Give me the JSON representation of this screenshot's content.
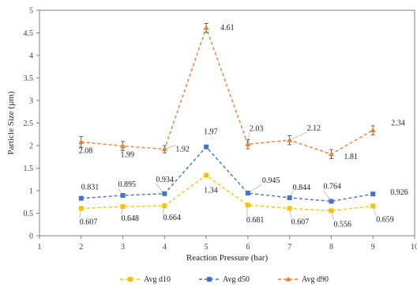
{
  "chart_data": {
    "type": "line",
    "xlabel": "Reaction Pressure (bar)",
    "ylabel": "Particle Size (µm)",
    "xlim": [
      1,
      10
    ],
    "ylim": [
      0,
      5
    ],
    "x_ticks": [
      "1",
      "2",
      "3",
      "4",
      "5",
      "6",
      "7",
      "8",
      "9",
      "10"
    ],
    "y_ticks": [
      "0",
      "0.5",
      "1",
      "1.5",
      "2",
      "2.5",
      "3",
      "3.5",
      "4",
      "4.5",
      "5"
    ],
    "x": [
      2,
      3,
      4,
      5,
      6,
      7,
      8,
      9
    ],
    "grid": false,
    "legend_position": "bottom",
    "series": [
      {
        "name": "Avg d10",
        "color": "#FFC000",
        "marker": "square",
        "values": [
          0.607,
          0.648,
          0.664,
          1.34,
          0.681,
          0.607,
          0.556,
          0.659
        ],
        "errors": [
          0.03,
          0.03,
          0.03,
          0.04,
          0.03,
          0.03,
          0.03,
          0.03
        ],
        "labels": [
          "0.607",
          "0.648",
          "0.664",
          "1.34",
          "0.681",
          "0.607",
          "0.556",
          "0.659"
        ]
      },
      {
        "name": "Avg d50",
        "color": "#4472C4",
        "marker": "square",
        "values": [
          0.831,
          0.895,
          0.934,
          1.97,
          0.945,
          0.844,
          0.764,
          0.926
        ],
        "errors": [
          0.03,
          0.03,
          0.03,
          0.04,
          0.03,
          0.03,
          0.03,
          0.03
        ],
        "labels": [
          "0.831",
          "0.895",
          "0.934",
          "1.97",
          "0.945",
          "0.844",
          "0.764",
          "0.926"
        ]
      },
      {
        "name": "Avg d90",
        "color": "#ED7D31",
        "marker": "triangle",
        "values": [
          2.08,
          1.99,
          1.92,
          4.61,
          2.03,
          2.12,
          1.81,
          2.34
        ],
        "errors": [
          0.12,
          0.1,
          0.08,
          0.1,
          0.1,
          0.1,
          0.1,
          0.1
        ],
        "labels": [
          "2.08",
          "1.99",
          "1.92",
          "4.61",
          "2.03",
          "2.12",
          "1.81",
          "2.34"
        ]
      }
    ]
  }
}
